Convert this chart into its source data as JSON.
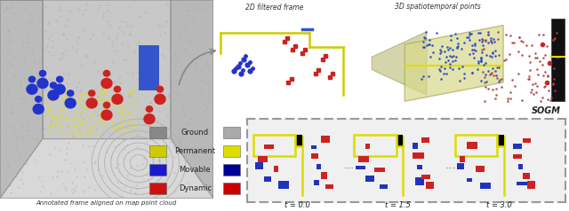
{
  "panel_labels": {
    "annotated_frame": "Annotated frame aligned on map point cloud",
    "filtered_frame": "2D filtered frame",
    "spatiotemporal": "3D spatiotemporal points",
    "sogm": "SOGM"
  },
  "legend_items": [
    {
      "label": "Ground",
      "color_left": "#888888",
      "color_right": "#aaaaaa"
    },
    {
      "label": "Permanent",
      "color_left": "#cccc00",
      "color_right": "#dddd00"
    },
    {
      "label": "Movable",
      "color_left": "#1a1acc",
      "color_right": "#000099"
    },
    {
      "label": "Dynamic",
      "color_left": "#cc1111",
      "color_right": "#cc0000"
    }
  ],
  "time_labels": [
    "t = 0.0",
    "t = 1.5",
    "t = 3.0"
  ],
  "bg_color": "#ffffff",
  "yellow": "#ddcc00",
  "blue": "#1133bb",
  "red": "#cc1111",
  "gray": "#aaaaaa"
}
